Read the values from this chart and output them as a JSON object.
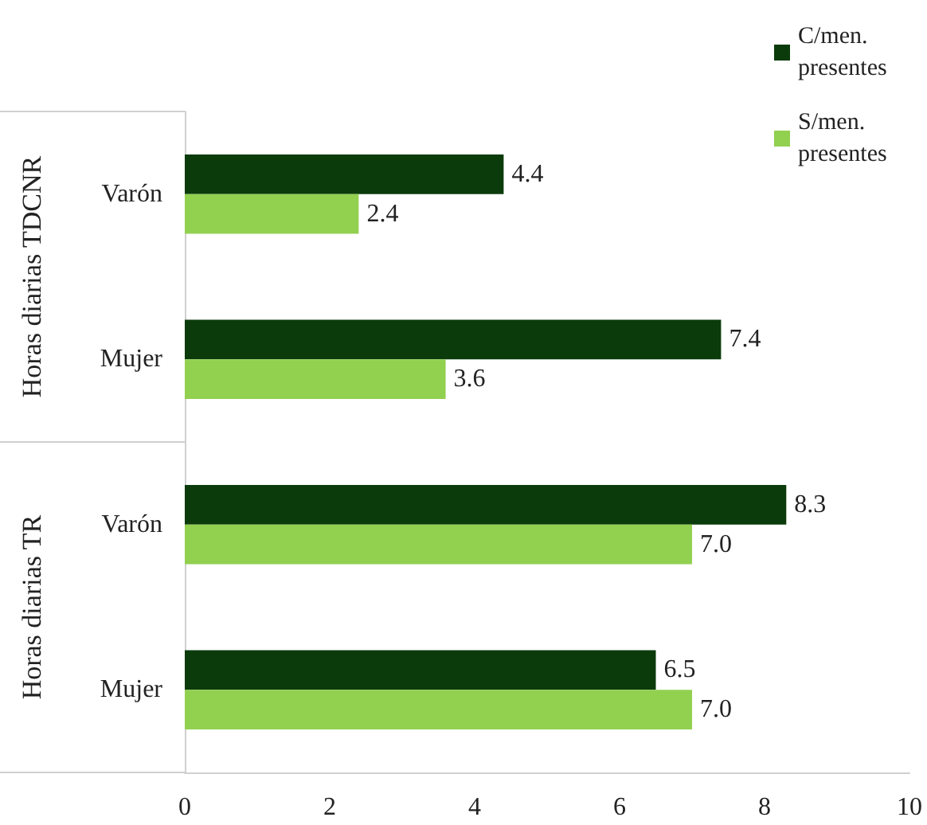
{
  "chart_data": {
    "type": "bar",
    "orientation": "horizontal",
    "categories": [
      "Varón",
      "Mujer",
      "Varón",
      "Mujer"
    ],
    "series": [
      {
        "name": "C/men. presentes",
        "color": "#0b3b0b",
        "values": [
          4.4,
          7.4,
          8.3,
          6.5
        ],
        "value_labels": [
          "4.4",
          "7.4",
          "8.3",
          "6.5"
        ]
      },
      {
        "name": "S/men. presentes",
        "color": "#92d050",
        "values": [
          2.4,
          3.6,
          7.0,
          7.0
        ],
        "value_labels": [
          "2.4",
          "3.6",
          "7.0",
          "7.0"
        ]
      }
    ],
    "annotations": [
      "Horas diarias TDCNR",
      "Horas diarias TR"
    ],
    "xlim": [
      0,
      10
    ],
    "xticks": [
      0,
      2,
      4,
      6,
      8,
      10
    ],
    "grid": false,
    "legend": "top right"
  }
}
